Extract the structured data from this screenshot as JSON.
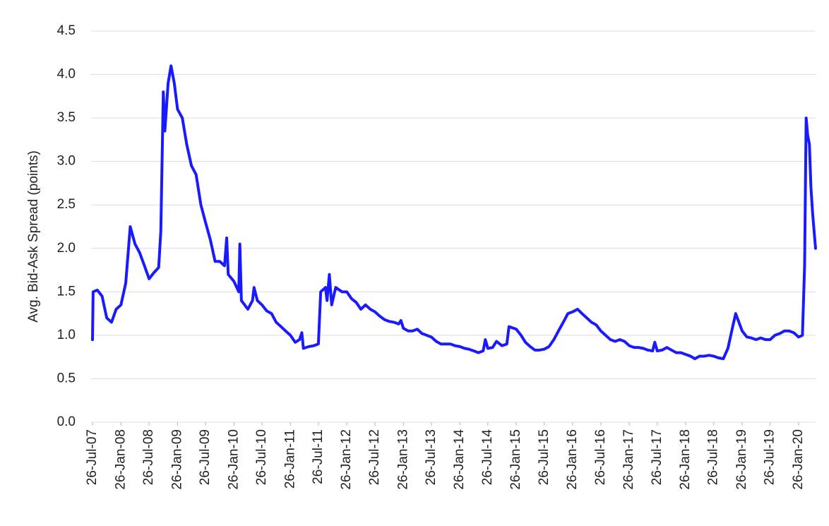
{
  "chart_data": {
    "type": "line",
    "y_label": "Avg. Bid-Ask Spread (points)",
    "color": "#1a1aff",
    "grid": true,
    "xlim": [
      "2007-07-26",
      "2020-05-15"
    ],
    "ylim": [
      0,
      4.5
    ],
    "yticks": [
      {
        "value": 0,
        "label": "0.0"
      },
      0.5,
      {
        "value": 1,
        "label": "1.0"
      },
      1.5,
      {
        "value": 2,
        "label": "2.0"
      },
      2.5,
      {
        "value": 3,
        "label": "3.0"
      },
      3.5,
      {
        "value": 4,
        "label": "4.0"
      },
      4.5
    ],
    "xticks": [
      {
        "value": "2007-07-26",
        "label": "26-Jul-07"
      },
      {
        "value": "2008-01-26",
        "label": "26-Jan-08"
      },
      {
        "value": "2008-07-26",
        "label": "26-Jul-08"
      },
      {
        "value": "2009-01-26",
        "label": "26-Jan-09"
      },
      {
        "value": "2009-07-26",
        "label": "26-Jul-09"
      },
      {
        "value": "2010-01-26",
        "label": "26-Jan-10"
      },
      {
        "value": "2010-07-26",
        "label": "26-Jul-10"
      },
      {
        "value": "2011-01-26",
        "label": "26-Jan-11"
      },
      {
        "value": "2011-07-26",
        "label": "26-Jul-11"
      },
      {
        "value": "2012-01-26",
        "label": "26-Jan-12"
      },
      {
        "value": "2012-07-26",
        "label": "26-Jul-12"
      },
      {
        "value": "2013-01-26",
        "label": "26-Jan-13"
      },
      {
        "value": "2013-07-26",
        "label": "26-Jul-13"
      },
      {
        "value": "2014-01-26",
        "label": "26-Jan-14"
      },
      {
        "value": "2014-07-26",
        "label": "26-Jul-14"
      },
      {
        "value": "2015-01-26",
        "label": "26-Jan-15"
      },
      {
        "value": "2015-07-26",
        "label": "26-Jul-15"
      },
      {
        "value": "2016-01-26",
        "label": "26-Jan-16"
      },
      {
        "value": "2016-07-26",
        "label": "26-Jul-16"
      },
      {
        "value": "2017-01-26",
        "label": "26-Jan-17"
      },
      {
        "value": "2017-07-26",
        "label": "26-Jul-17"
      },
      {
        "value": "2018-01-26",
        "label": "26-Jan-18"
      },
      {
        "value": "2018-07-26",
        "label": "26-Jul-18"
      },
      {
        "value": "2019-01-26",
        "label": "26-Jan-19"
      },
      {
        "value": "2019-07-26",
        "label": "26-Jul-19"
      },
      {
        "value": "2020-01-26",
        "label": "26-Jan-20"
      }
    ],
    "x": [
      "2007-07-26",
      "2007-07-30",
      "2007-08-26",
      "2007-09-26",
      "2007-10-26",
      "2007-11-26",
      "2007-12-26",
      "2008-01-26",
      "2008-02-26",
      "2008-03-26",
      "2008-04-26",
      "2008-05-26",
      "2008-06-26",
      "2008-07-26",
      "2008-08-26",
      "2008-09-26",
      "2008-10-10",
      "2008-10-26",
      "2008-11-05",
      "2008-11-26",
      "2008-12-15",
      "2009-01-05",
      "2009-01-26",
      "2009-02-26",
      "2009-03-26",
      "2009-04-26",
      "2009-05-26",
      "2009-06-26",
      "2009-07-26",
      "2009-08-26",
      "2009-09-26",
      "2009-10-26",
      "2009-11-26",
      "2009-12-10",
      "2009-12-20",
      "2010-01-26",
      "2010-02-26",
      "2010-03-05",
      "2010-03-15",
      "2010-04-26",
      "2010-05-26",
      "2010-06-05",
      "2010-06-26",
      "2010-07-26",
      "2010-08-26",
      "2010-09-26",
      "2010-10-26",
      "2010-11-26",
      "2010-12-26",
      "2011-01-26",
      "2011-02-26",
      "2011-03-26",
      "2011-04-10",
      "2011-04-20",
      "2011-05-26",
      "2011-06-26",
      "2011-07-26",
      "2011-08-10",
      "2011-09-10",
      "2011-09-20",
      "2011-10-05",
      "2011-10-20",
      "2011-11-15",
      "2011-12-26",
      "2012-01-26",
      "2012-02-26",
      "2012-03-26",
      "2012-04-26",
      "2012-05-26",
      "2012-06-26",
      "2012-07-26",
      "2012-08-26",
      "2012-09-26",
      "2012-10-26",
      "2012-11-26",
      "2012-12-26",
      "2013-01-10",
      "2013-01-26",
      "2013-02-26",
      "2013-03-26",
      "2013-04-26",
      "2013-05-26",
      "2013-06-26",
      "2013-07-26",
      "2013-08-26",
      "2013-09-26",
      "2013-10-26",
      "2013-11-26",
      "2013-12-26",
      "2014-01-26",
      "2014-02-26",
      "2014-03-26",
      "2014-04-26",
      "2014-05-26",
      "2014-06-26",
      "2014-07-10",
      "2014-07-26",
      "2014-08-26",
      "2014-09-20",
      "2014-10-26",
      "2014-11-26",
      "2014-12-10",
      "2015-01-26",
      "2015-02-26",
      "2015-03-26",
      "2015-04-26",
      "2015-05-26",
      "2015-06-26",
      "2015-07-26",
      "2015-08-26",
      "2015-09-26",
      "2015-10-26",
      "2015-11-26",
      "2015-12-26",
      "2016-01-26",
      "2016-02-26",
      "2016-03-26",
      "2016-04-26",
      "2016-05-26",
      "2016-06-26",
      "2016-07-26",
      "2016-08-26",
      "2016-09-26",
      "2016-10-26",
      "2016-11-26",
      "2016-12-26",
      "2017-01-26",
      "2017-02-26",
      "2017-03-26",
      "2017-04-26",
      "2017-05-26",
      "2017-06-26",
      "2017-07-10",
      "2017-07-26",
      "2017-08-26",
      "2017-09-26",
      "2017-10-26",
      "2017-11-26",
      "2017-12-26",
      "2018-01-26",
      "2018-02-26",
      "2018-03-26",
      "2018-04-26",
      "2018-05-26",
      "2018-06-26",
      "2018-07-26",
      "2018-08-26",
      "2018-09-26",
      "2018-10-26",
      "2018-11-26",
      "2018-12-15",
      "2019-01-26",
      "2019-02-26",
      "2019-03-26",
      "2019-04-26",
      "2019-05-26",
      "2019-06-26",
      "2019-07-26",
      "2019-08-26",
      "2019-09-26",
      "2019-10-26",
      "2019-11-26",
      "2019-12-26",
      "2020-01-26",
      "2020-02-20",
      "2020-03-05",
      "2020-03-15",
      "2020-03-25",
      "2020-04-05",
      "2020-04-15",
      "2020-04-26",
      "2020-05-10",
      "2020-05-15"
    ],
    "values": [
      0.95,
      1.5,
      1.52,
      1.45,
      1.2,
      1.15,
      1.3,
      1.35,
      1.6,
      2.25,
      2.05,
      1.95,
      1.8,
      1.65,
      1.72,
      1.78,
      2.2,
      3.8,
      3.35,
      3.9,
      4.1,
      3.9,
      3.6,
      3.5,
      3.2,
      2.95,
      2.85,
      2.5,
      2.3,
      2.1,
      1.85,
      1.85,
      1.8,
      2.12,
      1.7,
      1.62,
      1.5,
      2.05,
      1.4,
      1.3,
      1.4,
      1.55,
      1.4,
      1.35,
      1.28,
      1.25,
      1.15,
      1.1,
      1.05,
      1.0,
      0.92,
      0.95,
      1.03,
      0.85,
      0.87,
      0.88,
      0.9,
      1.5,
      1.55,
      1.4,
      1.7,
      1.35,
      1.55,
      1.5,
      1.5,
      1.42,
      1.38,
      1.3,
      1.35,
      1.3,
      1.27,
      1.22,
      1.18,
      1.16,
      1.15,
      1.13,
      1.17,
      1.08,
      1.05,
      1.05,
      1.07,
      1.02,
      1.0,
      0.98,
      0.93,
      0.9,
      0.9,
      0.9,
      0.88,
      0.87,
      0.85,
      0.84,
      0.82,
      0.8,
      0.82,
      0.95,
      0.85,
      0.86,
      0.93,
      0.88,
      0.9,
      1.1,
      1.07,
      1.0,
      0.92,
      0.87,
      0.83,
      0.83,
      0.84,
      0.87,
      0.95,
      1.05,
      1.15,
      1.25,
      1.27,
      1.3,
      1.25,
      1.2,
      1.15,
      1.12,
      1.05,
      1.0,
      0.95,
      0.93,
      0.95,
      0.93,
      0.88,
      0.86,
      0.86,
      0.85,
      0.83,
      0.82,
      0.92,
      0.82,
      0.83,
      0.86,
      0.83,
      0.8,
      0.8,
      0.78,
      0.76,
      0.73,
      0.76,
      0.76,
      0.77,
      0.76,
      0.74,
      0.73,
      0.85,
      1.1,
      1.25,
      1.05,
      0.98,
      0.97,
      0.95,
      0.97,
      0.95,
      0.95,
      1.0,
      1.02,
      1.05,
      1.05,
      1.03,
      0.98,
      1.0,
      1.8,
      3.5,
      3.3,
      3.2,
      2.7,
      2.4,
      2.1,
      2.0
    ]
  }
}
